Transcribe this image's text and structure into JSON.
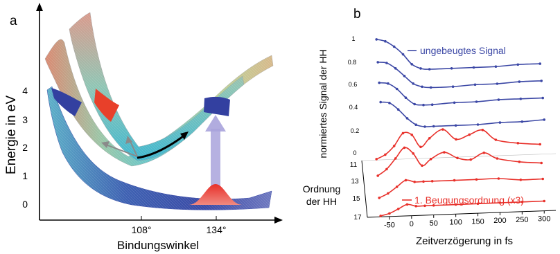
{
  "figure": {
    "panel_a": {
      "letter": "a",
      "ylabel": "Energie in eV",
      "xlabel": "Bindungswinkel",
      "yticks": [
        "0",
        "1",
        "2",
        "3",
        "4"
      ],
      "xticks": [
        "108°",
        "134°"
      ]
    },
    "panel_b": {
      "letter": "b",
      "ylabel": "normiertes Signal der HH",
      "zlabel_line1": "Ordnung",
      "zlabel_line2": "der HH",
      "xlabel": "Zeitverzögerung in fs",
      "legend_blue": "ungebeugtes Signal",
      "legend_red": "1. Beugungsordnung (x3)",
      "yticks": [
        "1",
        "0.8",
        "0.6",
        "0.4",
        "0.2",
        "0"
      ],
      "order_ticks": [
        "11",
        "13",
        "15",
        "17"
      ],
      "xticks": [
        "-50",
        "0",
        "50",
        "100",
        "150",
        "200",
        "250",
        "300"
      ]
    }
  },
  "colors": {
    "blue_series": "#3b47a5",
    "red_series": "#e8302a",
    "axis": "#000000"
  },
  "chart_data": [
    {
      "type": "surface",
      "title": "",
      "xlabel": "Bindungswinkel",
      "ylabel": "Energie in eV",
      "ylim": [
        0,
        4
      ],
      "x_ticks": [
        "108°",
        "134°"
      ]
    },
    {
      "type": "line",
      "title": "",
      "xlabel": "Zeitverzögerung in fs",
      "ylabel": "normiertes Signal der HH",
      "xlim": [
        -75,
        320
      ],
      "x_ticks": [
        -50,
        0,
        50,
        100,
        150,
        200,
        250,
        300
      ],
      "series": [
        {
          "name": "ungebeugtes Signal",
          "order": 11,
          "x": [
            -70,
            -50,
            -30,
            -10,
            10,
            30,
            50,
            100,
            150,
            200,
            250,
            300
          ],
          "y": [
            1.0,
            0.98,
            0.93,
            0.86,
            0.77,
            0.73,
            0.72,
            0.72,
            0.72,
            0.72,
            0.73,
            0.73
          ]
        },
        {
          "name": "ungebeugtes Signal",
          "order": 13,
          "x": [
            -70,
            -50,
            -30,
            -10,
            10,
            30,
            50,
            100,
            150,
            200,
            250,
            300
          ],
          "y": [
            0.8,
            0.79,
            0.74,
            0.67,
            0.6,
            0.57,
            0.56,
            0.56,
            0.57,
            0.57,
            0.58,
            0.58
          ]
        },
        {
          "name": "ungebeugtes Signal",
          "order": 15,
          "x": [
            -70,
            -50,
            -30,
            -10,
            10,
            30,
            50,
            100,
            150,
            200,
            250,
            300
          ],
          "y": [
            0.62,
            0.61,
            0.56,
            0.48,
            0.42,
            0.41,
            0.41,
            0.42,
            0.42,
            0.43,
            0.43,
            0.43
          ]
        },
        {
          "name": "ungebeugtes Signal",
          "order": 17,
          "x": [
            -70,
            -50,
            -30,
            -10,
            10,
            30,
            50,
            100,
            150,
            200,
            250,
            300
          ],
          "y": [
            0.45,
            0.44,
            0.38,
            0.3,
            0.24,
            0.22,
            0.22,
            0.22,
            0.22,
            0.23,
            0.23,
            0.24
          ]
        },
        {
          "name": "1. Beugungsordnung (x3)",
          "order": 11,
          "x": [
            -70,
            -50,
            -30,
            -10,
            10,
            30,
            50,
            80,
            110,
            140,
            170,
            200,
            250,
            300
          ],
          "y": [
            0.0,
            0.02,
            0.06,
            0.12,
            0.11,
            0.05,
            0.09,
            0.13,
            0.08,
            0.1,
            0.12,
            0.07,
            0.05,
            0.04
          ]
        },
        {
          "name": "1. Beugungsordnung (x3)",
          "order": 13,
          "x": [
            -70,
            -50,
            -30,
            -10,
            10,
            30,
            50,
            80,
            110,
            140,
            170,
            200,
            250,
            300
          ],
          "y": [
            0.0,
            0.03,
            0.08,
            0.13,
            0.1,
            0.04,
            0.07,
            0.1,
            0.07,
            0.06,
            0.09,
            0.06,
            0.04,
            0.03
          ]
        },
        {
          "name": "1. Beugungsordnung (x3)",
          "order": 15,
          "x": [
            -70,
            -50,
            -30,
            -10,
            10,
            30,
            50,
            100,
            150,
            200,
            250,
            300
          ],
          "y": [
            0.0,
            0.02,
            0.05,
            0.08,
            0.07,
            0.07,
            0.07,
            0.07,
            0.07,
            0.07,
            0.06,
            0.06
          ]
        },
        {
          "name": "1. Beugungsordnung (x3)",
          "order": 17,
          "x": [
            -70,
            -50,
            -30,
            -10,
            10,
            30,
            50,
            100,
            150,
            200,
            250,
            300
          ],
          "y": [
            0.0,
            0.01,
            0.03,
            0.05,
            0.04,
            0.04,
            0.04,
            0.04,
            0.04,
            0.04,
            0.04,
            0.04
          ]
        }
      ]
    }
  ]
}
